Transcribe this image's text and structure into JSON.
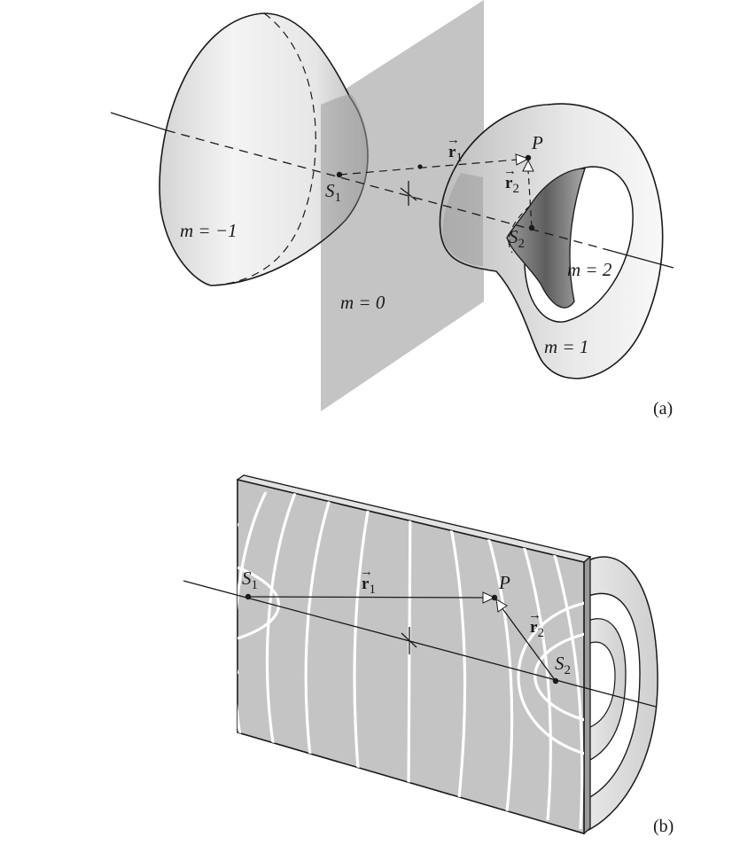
{
  "panel_a": {
    "label": "(a)",
    "regions": {
      "m_neg1": "m = −1",
      "m_0": "m = 0",
      "m_1": "m = 1",
      "m_2": "m = 2"
    },
    "points": {
      "s1": {
        "letter": "S",
        "index": "1"
      },
      "s2": {
        "letter": "S",
        "index": "2"
      },
      "p": "P"
    },
    "vectors": {
      "r1": {
        "letter": "r",
        "index": "1",
        "arrow": "→"
      },
      "r2": {
        "letter": "r",
        "index": "2",
        "arrow": "→"
      }
    }
  },
  "panel_b": {
    "label": "(b)",
    "points": {
      "s1": {
        "letter": "S",
        "index": "1"
      },
      "s2": {
        "letter": "S",
        "index": "2"
      },
      "p": "P"
    },
    "vectors": {
      "r1": {
        "letter": "r",
        "index": "1",
        "arrow": "→"
      },
      "r2": {
        "letter": "r",
        "index": "2",
        "arrow": "→"
      }
    }
  },
  "colors": {
    "ink": "#1a1a1a",
    "plane": "#c4c4c4",
    "plane_dark": "#a9a9a9",
    "shell_light": "#f0f0f0",
    "shell_mid": "#c8c8c8",
    "inner_dark": "#707070",
    "fringe": "#ffffff"
  }
}
